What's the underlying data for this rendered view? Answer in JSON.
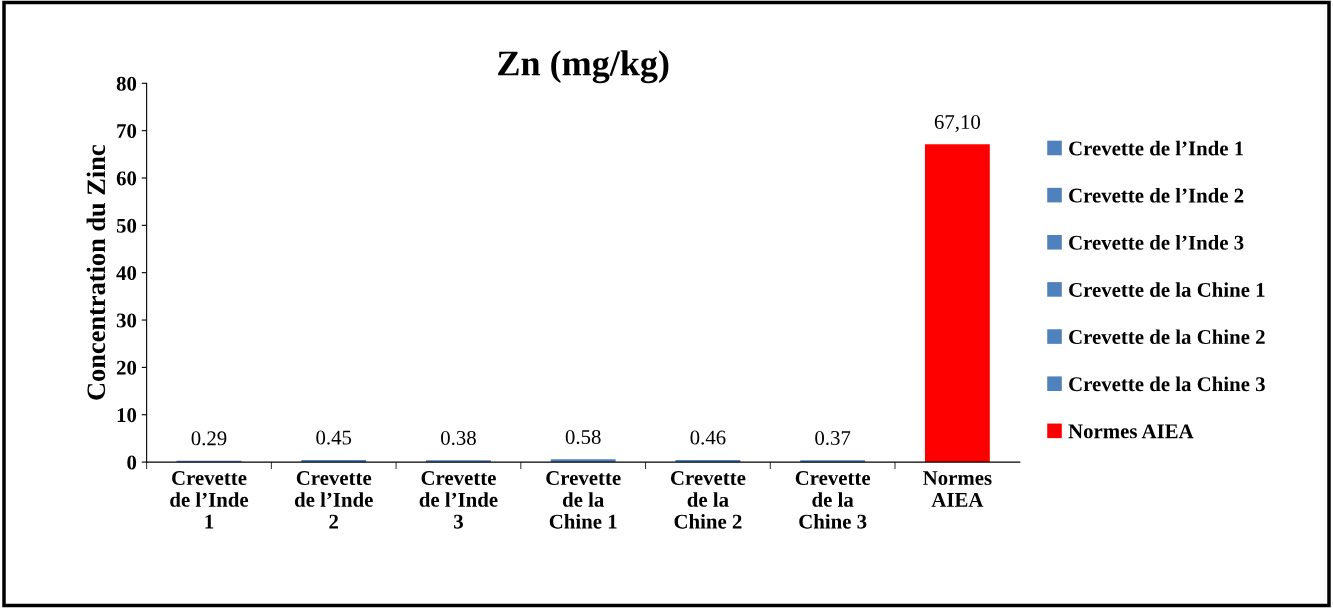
{
  "chart_data": {
    "type": "bar",
    "title": "Zn (mg/kg)",
    "ylabel": "Concentration du Zinc",
    "categories": [
      "Crevette\nde l’Inde\n1",
      "Crevette\nde l’Inde\n2",
      "Crevette\nde l’Inde\n3",
      "Crevette\nde la\nChine 1",
      "Crevette\nde la\nChine 2",
      "Crevette\nde la\nChine 3",
      "Normes\nAIEA"
    ],
    "series": [
      {
        "name": "Crevette de l’Inde 1",
        "color": "#4f81bd",
        "values": [
          0.29,
          null,
          null,
          null,
          null,
          null,
          null
        ],
        "value_labels": [
          "0.29",
          null,
          null,
          null,
          null,
          null,
          null
        ]
      },
      {
        "name": "Crevette de l’Inde 2",
        "color": "#4f81bd",
        "values": [
          null,
          0.45,
          null,
          null,
          null,
          null,
          null
        ],
        "value_labels": [
          null,
          "0.45",
          null,
          null,
          null,
          null,
          null
        ]
      },
      {
        "name": "Crevette de l’Inde 3",
        "color": "#4f81bd",
        "values": [
          null,
          null,
          0.38,
          null,
          null,
          null,
          null
        ],
        "value_labels": [
          null,
          null,
          "0.38",
          null,
          null,
          null,
          null
        ]
      },
      {
        "name": "Crevette de la Chine 1",
        "color": "#4f81bd",
        "values": [
          null,
          null,
          null,
          0.58,
          null,
          null,
          null
        ],
        "value_labels": [
          null,
          null,
          null,
          "0.58",
          null,
          null,
          null
        ]
      },
      {
        "name": "Crevette de la Chine 2",
        "color": "#4f81bd",
        "values": [
          null,
          null,
          null,
          null,
          0.46,
          null,
          null
        ],
        "value_labels": [
          null,
          null,
          null,
          null,
          "0.46",
          null,
          null
        ]
      },
      {
        "name": "Crevette de la Chine 3",
        "color": "#4f81bd",
        "values": [
          null,
          null,
          null,
          null,
          null,
          0.37,
          null
        ],
        "value_labels": [
          null,
          null,
          null,
          null,
          null,
          "0.37",
          null
        ]
      },
      {
        "name": "Normes AIEA",
        "color": "#ff0000",
        "values": [
          null,
          null,
          null,
          null,
          null,
          null,
          67.1
        ],
        "value_labels": [
          null,
          null,
          null,
          null,
          null,
          null,
          "67,10"
        ]
      }
    ],
    "ylim": [
      0,
      80
    ],
    "yticks": [
      0,
      10,
      20,
      30,
      40,
      50,
      60,
      70,
      80
    ],
    "grid": false,
    "legend": "right"
  }
}
